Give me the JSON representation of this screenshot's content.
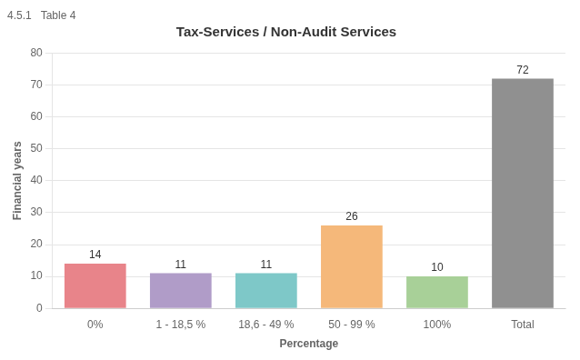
{
  "chart_data": {
    "type": "bar",
    "title": "Tax-Services / Non-Audit Services",
    "subtitle": "4.5.1   Table 4",
    "x_label": "Percentage",
    "y_label": "Financial years",
    "categories": [
      "0%",
      "1 - 18,5 %",
      "18,6 - 49 %",
      "50 - 99 %",
      "100%",
      "Total"
    ],
    "values": [
      14,
      11,
      11,
      26,
      10,
      72
    ],
    "colors": [
      "#e8848a",
      "#b09cc8",
      "#7ec8c8",
      "#f5b87a",
      "#a8d098",
      "#909090"
    ],
    "ylim": [
      0,
      80
    ],
    "yticks": [
      0,
      10,
      20,
      30,
      40,
      50,
      60,
      70,
      80
    ],
    "grid": "y",
    "data_labels": true
  }
}
